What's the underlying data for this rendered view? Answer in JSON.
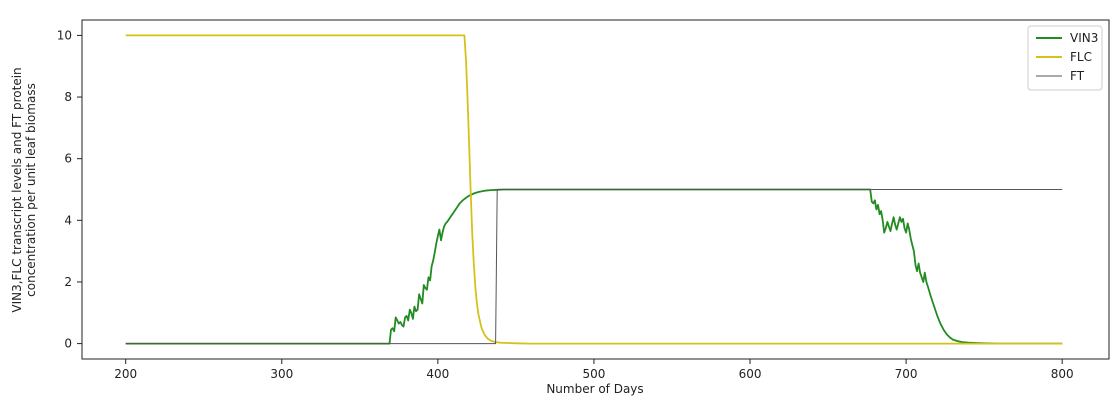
{
  "chart_data": {
    "type": "line",
    "title": "",
    "xlabel": "Number of Days",
    "ylabel_lines": [
      "VIN3,FLC transcript levels and FT protein",
      "concentration per unit leaf biomass"
    ],
    "xlim": [
      172,
      830
    ],
    "ylim": [
      -0.5,
      10.5
    ],
    "xticks": [
      200,
      300,
      400,
      500,
      600,
      700,
      800
    ],
    "yticks": [
      0,
      2,
      4,
      6,
      8,
      10
    ],
    "grid": false,
    "legend_position": "top-right",
    "series": [
      {
        "name": "VIN3",
        "color": "#228b22",
        "x": [
          200,
          369,
          370,
          371,
          372,
          373,
          374,
          375,
          376,
          377,
          378,
          379,
          380,
          381,
          382,
          383,
          384,
          385,
          386,
          387,
          388,
          389,
          390,
          391,
          392,
          393,
          394,
          395,
          396,
          397,
          398,
          399,
          400,
          401,
          402,
          403,
          404,
          405,
          406,
          408,
          410,
          412,
          414,
          416,
          418,
          420,
          423,
          426,
          430,
          434,
          438,
          442,
          447,
          455,
          470,
          500,
          600,
          677,
          678,
          679,
          680,
          681,
          682,
          683,
          684,
          685,
          686,
          687,
          688,
          689,
          690,
          691,
          692,
          693,
          694,
          695,
          696,
          697,
          698,
          699,
          700,
          701,
          702,
          703,
          704,
          705,
          706,
          707,
          708,
          709,
          710,
          711,
          712,
          713,
          714,
          716,
          718,
          720,
          722,
          724,
          726,
          728,
          730,
          733,
          736,
          740,
          745,
          750,
          760,
          775,
          800
        ],
        "y": [
          0,
          0,
          0.45,
          0.5,
          0.4,
          0.85,
          0.75,
          0.65,
          0.7,
          0.6,
          0.55,
          0.85,
          0.9,
          0.75,
          1.1,
          1.0,
          0.8,
          1.2,
          1.05,
          1.1,
          1.6,
          1.45,
          1.3,
          1.9,
          1.8,
          1.75,
          2.15,
          2.05,
          2.5,
          2.7,
          2.95,
          3.25,
          3.5,
          3.7,
          3.35,
          3.6,
          3.8,
          3.9,
          3.95,
          4.1,
          4.25,
          4.4,
          4.55,
          4.65,
          4.73,
          4.8,
          4.87,
          4.92,
          4.96,
          4.98,
          4.99,
          5.0,
          5.0,
          5.0,
          5.0,
          5.0,
          5.0,
          5.0,
          4.6,
          4.55,
          4.65,
          4.35,
          4.5,
          4.2,
          4.3,
          4.0,
          3.6,
          3.75,
          3.95,
          3.8,
          3.65,
          3.9,
          4.1,
          3.85,
          3.7,
          3.9,
          4.1,
          3.95,
          4.05,
          3.75,
          3.6,
          3.9,
          3.7,
          3.4,
          3.2,
          3.0,
          2.55,
          2.35,
          2.6,
          2.3,
          2.15,
          2.0,
          2.3,
          2.0,
          1.85,
          1.5,
          1.2,
          0.9,
          0.65,
          0.45,
          0.3,
          0.2,
          0.13,
          0.08,
          0.05,
          0.03,
          0.02,
          0.01,
          0.0,
          0.0,
          0.0
        ]
      },
      {
        "name": "FLC",
        "color": "#d4c21a",
        "x": [
          200,
          417,
          418,
          419,
          420,
          421,
          422,
          423,
          424,
          425,
          426,
          428,
          430,
          432,
          434,
          437,
          440,
          445,
          450,
          460,
          480,
          500,
          600,
          700,
          800
        ],
        "y": [
          10,
          10,
          9.2,
          8.0,
          6.5,
          5.0,
          3.6,
          2.6,
          1.85,
          1.3,
          0.95,
          0.5,
          0.28,
          0.16,
          0.09,
          0.05,
          0.03,
          0.02,
          0.01,
          0.0,
          0.0,
          0.0,
          0.0,
          0.0,
          0.0
        ]
      },
      {
        "name": "FT",
        "color": "#555555",
        "x": [
          200,
          437,
          438,
          500,
          600,
          700,
          800
        ],
        "y": [
          0,
          0,
          5,
          5,
          5,
          5,
          5
        ]
      }
    ]
  }
}
